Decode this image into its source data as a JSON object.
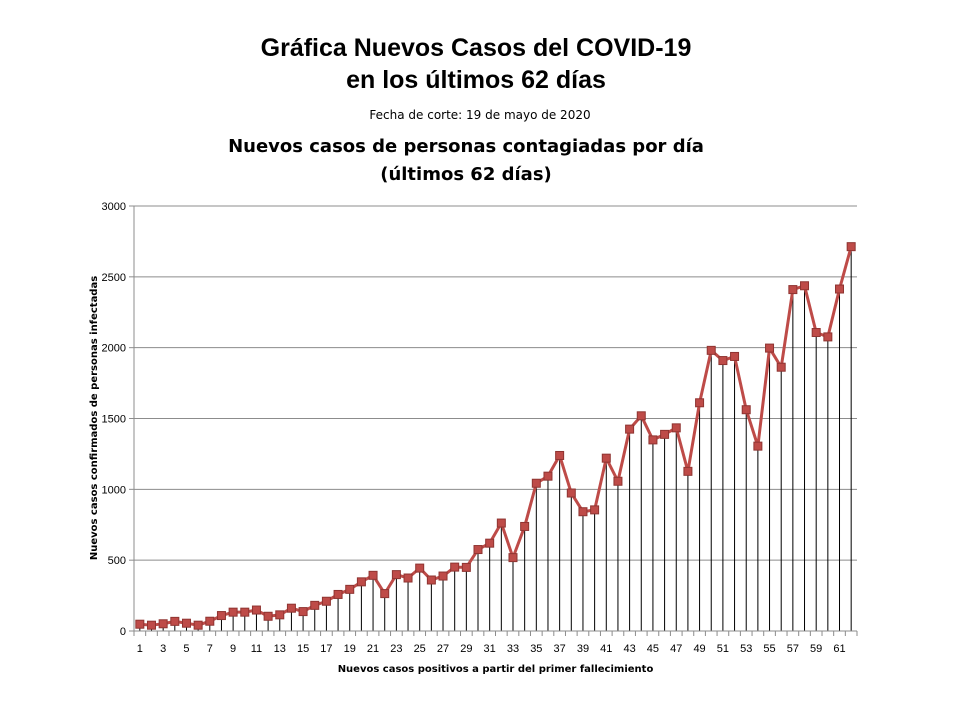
{
  "header": {
    "title_line1": "Gráfica Nuevos Casos del COVID-19",
    "title_line2": "en los últimos 62 días",
    "cutoff": "Fecha de corte: 19 de mayo de 2020"
  },
  "chart_data": {
    "type": "line",
    "title": "Nuevos casos de personas contagiadas por día",
    "subtitle": "(últimos 62 días)",
    "xlabel": "Nuevos casos positivos a partir del primer fallecimiento",
    "ylabel": "Nuevos casos confirmados de personas infectadas",
    "ylim": [
      0,
      3000
    ],
    "yticks": [
      0,
      500,
      1000,
      1500,
      2000,
      2500,
      3000
    ],
    "xtick_labels": [
      "1",
      "3",
      "5",
      "7",
      "9",
      "11",
      "13",
      "15",
      "17",
      "19",
      "21",
      "23",
      "25",
      "27",
      "29",
      "31",
      "33",
      "35",
      "37",
      "39",
      "41",
      "43",
      "45",
      "47",
      "49",
      "51",
      "53",
      "55",
      "57",
      "59",
      "61"
    ],
    "grid": "horizontal",
    "drop_lines": true,
    "line_color": "#be4b48",
    "marker_color": "#be4b48",
    "x": [
      1,
      2,
      3,
      4,
      5,
      6,
      7,
      8,
      9,
      10,
      11,
      12,
      13,
      14,
      15,
      16,
      17,
      18,
      19,
      20,
      21,
      22,
      23,
      24,
      25,
      26,
      27,
      28,
      29,
      30,
      31,
      32,
      33,
      34,
      35,
      36,
      37,
      38,
      39,
      40,
      41,
      42,
      43,
      44,
      45,
      46,
      47,
      48,
      49,
      50,
      51,
      52,
      53,
      54,
      55,
      56,
      57,
      58,
      59,
      60,
      61,
      62
    ],
    "series": [
      {
        "values": [
          48,
          41,
          51,
          68,
          55,
          41,
          69,
          109,
          133,
          133,
          148,
          104,
          114,
          161,
          137,
          181,
          210,
          258,
          294,
          347,
          393,
          264,
          398,
          374,
          444,
          360,
          388,
          451,
          449,
          575,
          620,
          762,
          518,
          738,
          1043,
          1093,
          1239,
          974,
          842,
          855,
          1220,
          1057,
          1425,
          1519,
          1349,
          1388,
          1434,
          1127,
          1611,
          1981,
          1909,
          1938,
          1562,
          1305,
          1997,
          1862,
          2410,
          2437,
          2107,
          2076,
          2414,
          2713
        ]
      }
    ]
  }
}
